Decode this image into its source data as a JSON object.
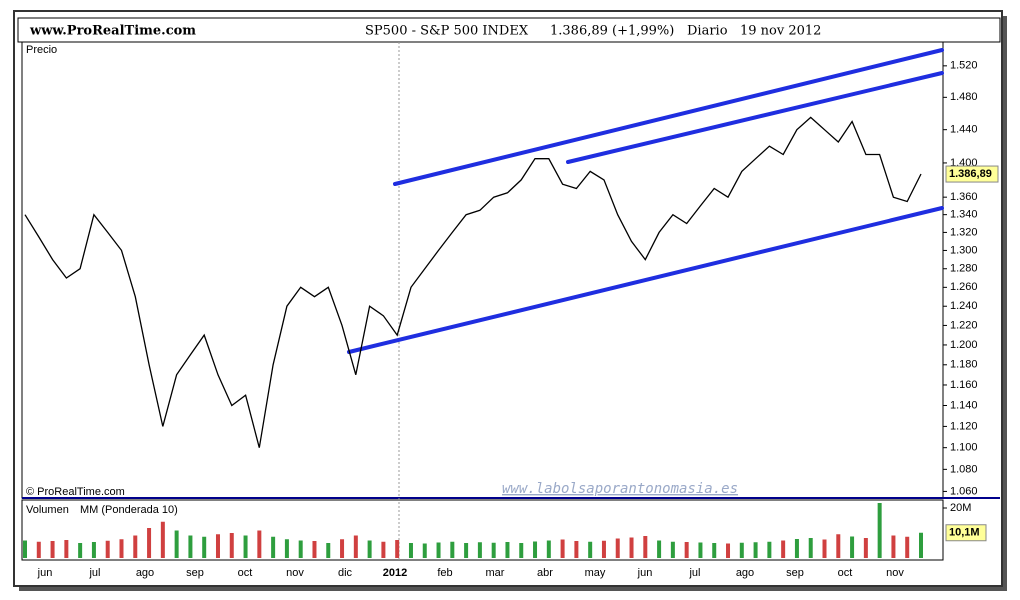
{
  "header": {
    "site": "www.ProRealTime.com",
    "instrument": "SP500 - S&P 500 INDEX",
    "last": "1.386,89 (+1,99%)",
    "period": "Diario",
    "date": "19 nov 2012"
  },
  "watermark": "www.labolsaporantonomasia.es",
  "copyright": "© ProRealTime.com",
  "chart_data": [
    {
      "type": "line",
      "title": "Precio",
      "log_scale": true,
      "color": "#000000",
      "values": [
        1340,
        1315,
        1290,
        1270,
        1280,
        1340,
        1320,
        1300,
        1250,
        1180,
        1120,
        1170,
        1190,
        1210,
        1170,
        1140,
        1150,
        1100,
        1180,
        1240,
        1260,
        1250,
        1260,
        1220,
        1170,
        1240,
        1230,
        1210,
        1260,
        1280,
        1300,
        1320,
        1340,
        1345,
        1360,
        1365,
        1380,
        1405,
        1405,
        1375,
        1370,
        1390,
        1380,
        1340,
        1310,
        1290,
        1320,
        1340,
        1330,
        1350,
        1370,
        1360,
        1390,
        1405,
        1420,
        1410,
        1440,
        1455,
        1440,
        1425,
        1450,
        1410,
        1410,
        1360,
        1355,
        1386.89
      ],
      "last_value": 1386.89,
      "last_value_label": "1.386,89",
      "ylim": [
        1055,
        1551
      ],
      "yticks": [
        {
          "value": 1060,
          "label": "1.060"
        },
        {
          "value": 1080,
          "label": "1.080"
        },
        {
          "value": 1100,
          "label": "1.100"
        },
        {
          "value": 1120,
          "label": "1.120"
        },
        {
          "value": 1140,
          "label": "1.140"
        },
        {
          "value": 1160,
          "label": "1.160"
        },
        {
          "value": 1180,
          "label": "1.180"
        },
        {
          "value": 1200,
          "label": "1.200"
        },
        {
          "value": 1220,
          "label": "1.220"
        },
        {
          "value": 1240,
          "label": "1.240"
        },
        {
          "value": 1260,
          "label": "1.260"
        },
        {
          "value": 1280,
          "label": "1.280"
        },
        {
          "value": 1300,
          "label": "1.300"
        },
        {
          "value": 1320,
          "label": "1.320"
        },
        {
          "value": 1340,
          "label": "1.340"
        },
        {
          "value": 1360,
          "label": "1.360"
        },
        {
          "value": 1400,
          "label": "1.400"
        },
        {
          "value": 1440,
          "label": "1.440"
        },
        {
          "value": 1480,
          "label": "1.480"
        },
        {
          "value": 1520,
          "label": "1.520"
        }
      ],
      "xtick_labels": [
        "jun",
        "jul",
        "ago",
        "sep",
        "oct",
        "nov",
        "dic",
        "2012",
        "feb",
        "mar",
        "abr",
        "may",
        "jun",
        "jul",
        "ago",
        "sep",
        "oct",
        "nov"
      ]
    },
    {
      "type": "bar",
      "title": "Volumen",
      "subtitle": "MM (Ponderada 10)",
      "up_color": "#2e9e3e",
      "down_color": "#d04040",
      "values": [
        7000000,
        6500000,
        6800000,
        7200000,
        6000000,
        6400000,
        6900000,
        7500000,
        9000000,
        12000000,
        14500000,
        11000000,
        9000000,
        8500000,
        9500000,
        10000000,
        9000000,
        11000000,
        8500000,
        7500000,
        7000000,
        6800000,
        6000000,
        7500000,
        9000000,
        7000000,
        6500000,
        7200000,
        6000000,
        5800000,
        6200000,
        6500000,
        6000000,
        6300000,
        6100000,
        6400000,
        6000000,
        6600000,
        7000000,
        7400000,
        6800000,
        6500000,
        6900000,
        7800000,
        8200000,
        8800000,
        7000000,
        6500000,
        6400000,
        6200000,
        6000000,
        5800000,
        6100000,
        6300000,
        6500000,
        7000000,
        7600000,
        8000000,
        7400000,
        9500000,
        8600000,
        8000000,
        22000000,
        9000000,
        8500000,
        10100000
      ],
      "last_value": 10100000,
      "last_value_label": "10,1M",
      "ylim": [
        0,
        23200000
      ],
      "yticks": [
        {
          "value": 20000000,
          "label": "20M"
        }
      ]
    }
  ]
}
